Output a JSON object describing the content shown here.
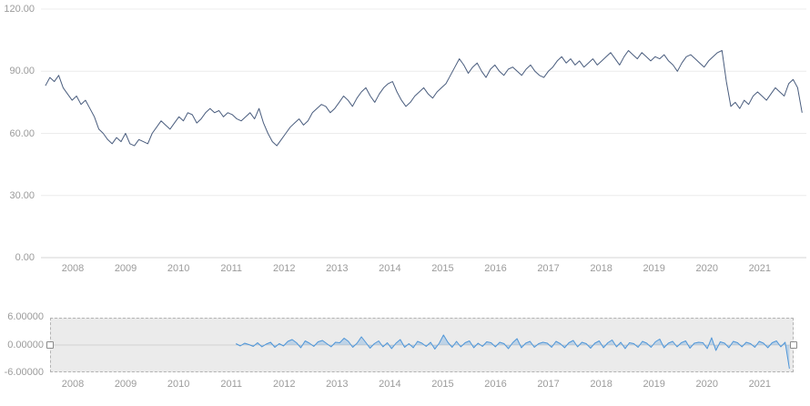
{
  "axes": {
    "main_y_ticks": [
      "120.00",
      "90.00",
      "60.00",
      "30.00",
      "0.00"
    ],
    "nav_y_ticks": [
      "6.00000",
      "0.00000",
      "-6.00000"
    ],
    "x_ticks": [
      "2008",
      "2009",
      "2010",
      "2011",
      "2012",
      "2013",
      "2014",
      "2015",
      "2016",
      "2017",
      "2018",
      "2019",
      "2020",
      "2021"
    ]
  },
  "colors": {
    "main_line": "#4a5d7e",
    "nav_line": "#4f96d8",
    "nav_fill": "rgba(110,165,220,0.35)",
    "grid": "#ececec",
    "zero_line": "#d6d6d6",
    "axis_label": "#9b9b9b",
    "nav_selection_fill": "#ebebeb",
    "nav_selection_border": "#b3b3b3"
  },
  "navigator": {
    "selection": "full-range",
    "handles": [
      "left",
      "right"
    ]
  },
  "chart_data": [
    {
      "type": "line",
      "name": "main-price-series",
      "title": "",
      "xlabel": "",
      "ylabel": "",
      "x_start": 2007.583,
      "x_step_years": 0.083333,
      "x_range": [
        2007.5,
        2021.83
      ],
      "ylim": [
        0,
        120
      ],
      "y_ticks": [
        0,
        30,
        60,
        90,
        120
      ],
      "x_tick_years": [
        2008,
        2009,
        2010,
        2011,
        2012,
        2013,
        2014,
        2015,
        2016,
        2017,
        2018,
        2019,
        2020,
        2021
      ],
      "grid": "horizontal",
      "legend": "none",
      "values": [
        83,
        87,
        85,
        88,
        82,
        79,
        76,
        78,
        74,
        76,
        72,
        68,
        62,
        60,
        57,
        55,
        58,
        56,
        60,
        55,
        54,
        57,
        56,
        55,
        60,
        63,
        66,
        64,
        62,
        65,
        68,
        66,
        70,
        69,
        65,
        67,
        70,
        72,
        70,
        71,
        68,
        70,
        69,
        67,
        66,
        68,
        70,
        67,
        72,
        65,
        60,
        56,
        54,
        57,
        60,
        63,
        65,
        67,
        64,
        66,
        70,
        72,
        74,
        73,
        70,
        72,
        75,
        78,
        76,
        73,
        77,
        80,
        82,
        78,
        75,
        79,
        82,
        84,
        85,
        80,
        76,
        73,
        75,
        78,
        80,
        82,
        79,
        77,
        80,
        82,
        84,
        88,
        92,
        96,
        93,
        89,
        92,
        94,
        90,
        87,
        91,
        93,
        90,
        88,
        91,
        92,
        90,
        88,
        91,
        93,
        90,
        88,
        87,
        90,
        92,
        95,
        97,
        94,
        96,
        93,
        95,
        92,
        94,
        96,
        93,
        95,
        97,
        99,
        96,
        93,
        97,
        100,
        98,
        96,
        99,
        97,
        95,
        97,
        96,
        98,
        95,
        93,
        90,
        94,
        97,
        98,
        96,
        94,
        92,
        95,
        97,
        99,
        100,
        85,
        73,
        75,
        72,
        76,
        74,
        78,
        80,
        78,
        76,
        79,
        82,
        80,
        78,
        84,
        86,
        82,
        70
      ]
    },
    {
      "type": "area",
      "name": "navigator-change-series",
      "title": "",
      "x_start": 2011.083,
      "x_step_years": 0.083333,
      "x_range": [
        2007.5,
        2021.83
      ],
      "ylim": [
        -6,
        6
      ],
      "y_ticks": [
        -6,
        0,
        6
      ],
      "legend": "none",
      "values": [
        0.3,
        -0.2,
        0.4,
        0.1,
        -0.3,
        0.5,
        -0.4,
        0.2,
        0.6,
        -0.5,
        0.3,
        -0.2,
        0.8,
        1.2,
        0.5,
        -0.6,
        0.9,
        0.4,
        -0.3,
        0.7,
        1.0,
        0.3,
        -0.4,
        0.6,
        0.5,
        1.5,
        0.8,
        -0.5,
        0.4,
        1.8,
        0.6,
        -0.7,
        0.3,
        0.9,
        -0.4,
        0.5,
        -0.8,
        0.4,
        1.2,
        -0.5,
        0.3,
        -0.6,
        0.8,
        0.4,
        -0.3,
        0.6,
        -0.9,
        0.4,
        2.2,
        0.6,
        -0.5,
        0.8,
        -0.4,
        0.5,
        0.9,
        -0.6,
        0.4,
        -0.3,
        0.7,
        0.5,
        -0.4,
        0.6,
        0.3,
        -0.8,
        0.5,
        1.4,
        -0.6,
        0.4,
        0.8,
        -0.5,
        0.3,
        0.6,
        0.4,
        -0.5,
        0.8,
        0.3,
        -0.6,
        0.5,
        1.0,
        -0.4,
        0.6,
        0.3,
        -0.7,
        0.4,
        0.9,
        -0.6,
        0.5,
        1.1,
        -0.4,
        0.6,
        -0.8,
        0.5,
        0.3,
        -0.5,
        0.8,
        0.4,
        -0.5,
        0.7,
        1.3,
        -0.6,
        0.4,
        0.8,
        -0.4,
        0.5,
        0.9,
        -0.7,
        0.4,
        0.6,
        0.5,
        -0.8,
        1.6,
        -1.2,
        0.7,
        0.4,
        -0.6,
        0.8,
        0.5,
        -0.4,
        0.6,
        0.3,
        -0.5,
        0.8,
        0.4,
        -0.6,
        0.5,
        0.9,
        -0.4,
        0.6,
        -5.2
      ]
    }
  ]
}
